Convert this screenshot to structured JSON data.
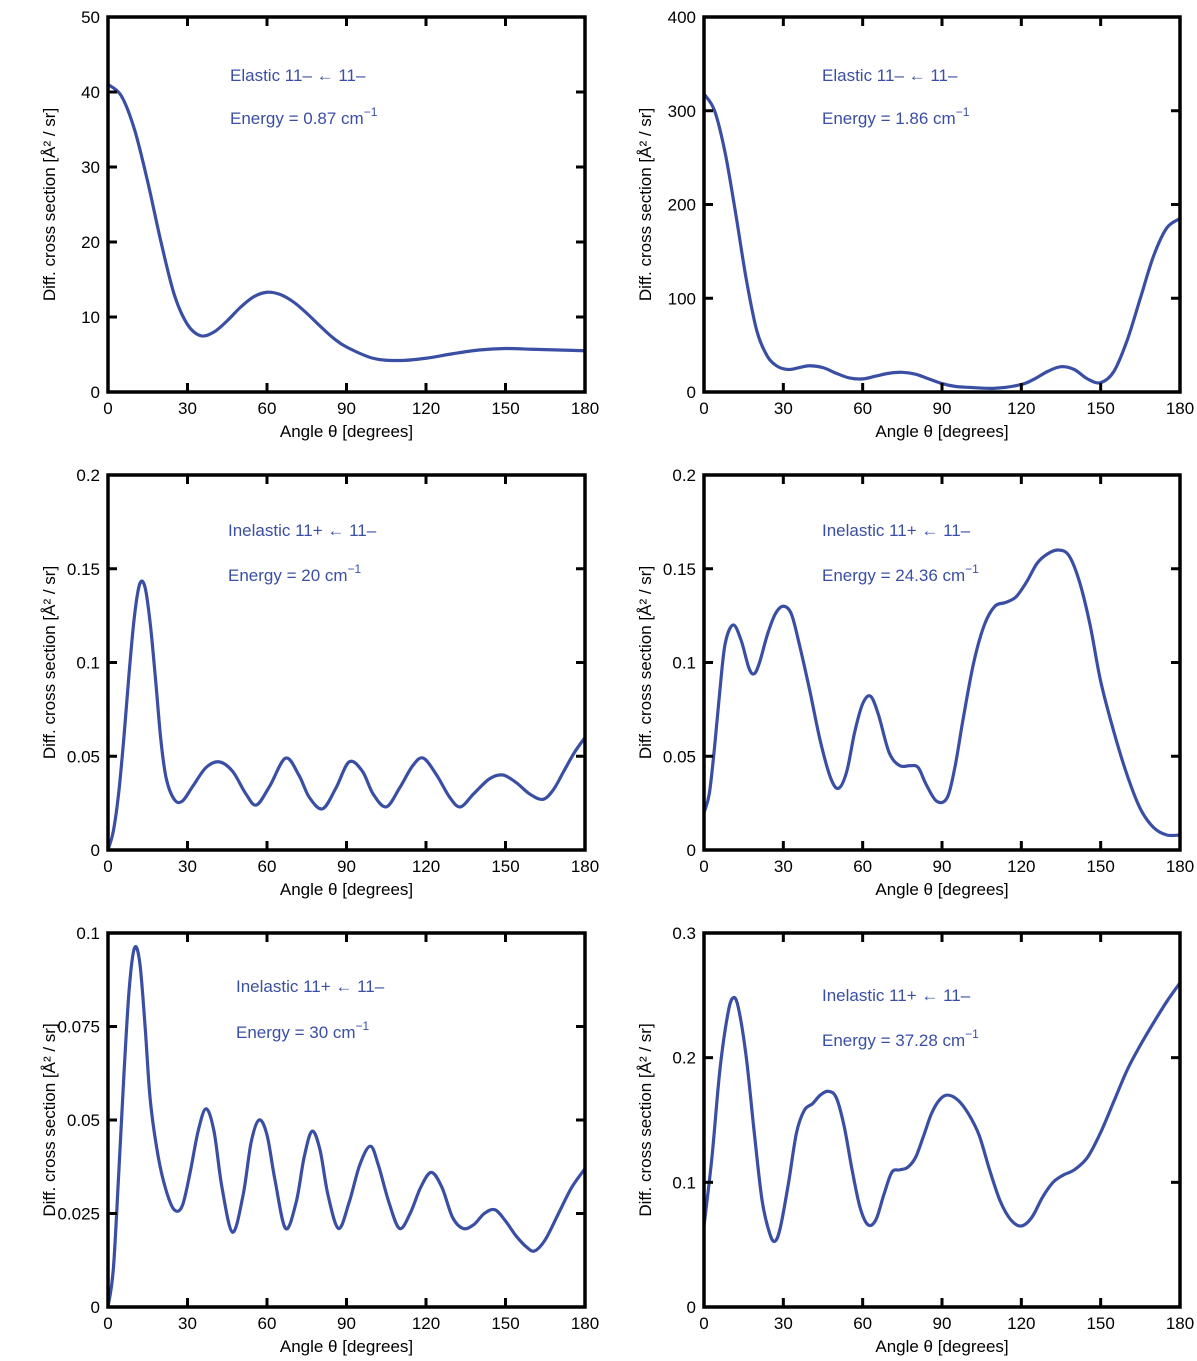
{
  "colors": {
    "line": "#3a4fa3",
    "axes": "#000000",
    "annotation": "#3a4fa3",
    "background": "#ffffff"
  },
  "chart_data": [
    {
      "type": "line",
      "xlabel": "Angle θ [degrees]",
      "ylabel": "Diff. cross section [Å² / sr]",
      "xlim": [
        0,
        180
      ],
      "ylim": [
        0,
        50
      ],
      "xticks": [
        "0",
        "30",
        "60",
        "90",
        "120",
        "150",
        "180"
      ],
      "yticks": [
        "0",
        "10",
        "20",
        "30",
        "40",
        "50"
      ],
      "annotation": {
        "line1": "Elastic 11– ← 11–",
        "line2_prefix": "Energy = 0.87 cm",
        "line2_sup": "−1"
      },
      "series": [
        {
          "x": [
            0,
            5,
            10,
            15,
            20,
            25,
            30,
            35,
            40,
            45,
            50,
            55,
            60,
            65,
            70,
            75,
            80,
            85,
            90,
            100,
            110,
            120,
            130,
            140,
            150,
            160,
            170,
            180
          ],
          "y": [
            41,
            39.5,
            35,
            28,
            20,
            13,
            9,
            7.5,
            8,
            9.5,
            11.3,
            12.7,
            13.3,
            13,
            12,
            10.5,
            8.8,
            7.2,
            6,
            4.5,
            4.2,
            4.5,
            5.1,
            5.6,
            5.8,
            5.7,
            5.6,
            5.5
          ]
        }
      ]
    },
    {
      "type": "line",
      "xlabel": "Angle θ [degrees]",
      "ylabel": "Diff. cross section [Å² / sr]",
      "xlim": [
        0,
        180
      ],
      "ylim": [
        0,
        400
      ],
      "xticks": [
        "0",
        "30",
        "60",
        "90",
        "120",
        "150",
        "180"
      ],
      "yticks": [
        "0",
        "100",
        "200",
        "300",
        "400"
      ],
      "annotation": {
        "line1": "Elastic 11– ← 11–",
        "line2_prefix": "Energy = 1.86 cm",
        "line2_sup": "−1"
      },
      "series": [
        {
          "x": [
            0,
            4,
            8,
            12,
            16,
            20,
            24,
            28,
            32,
            36,
            40,
            45,
            50,
            55,
            60,
            65,
            70,
            75,
            80,
            85,
            90,
            95,
            100,
            110,
            120,
            125,
            130,
            135,
            140,
            145,
            150,
            155,
            160,
            165,
            170,
            175,
            180
          ],
          "y": [
            318,
            300,
            255,
            190,
            120,
            65,
            38,
            27,
            24,
            26,
            28,
            26,
            20,
            15,
            14,
            17,
            20,
            21,
            19,
            14,
            9,
            6,
            5,
            4,
            8,
            14,
            22,
            27,
            24,
            14,
            10,
            22,
            55,
            100,
            145,
            175,
            185
          ]
        }
      ]
    },
    {
      "type": "line",
      "xlabel": "Angle θ [degrees]",
      "ylabel": "Diff. cross section [Å² / sr]",
      "xlim": [
        0,
        180
      ],
      "ylim": [
        0,
        0.2
      ],
      "xticks": [
        "0",
        "30",
        "60",
        "90",
        "120",
        "150",
        "180"
      ],
      "yticks": [
        "0",
        "0.05",
        "0.1",
        "0.15",
        "0.2"
      ],
      "annotation": {
        "line1": "Inelastic 11+ ← 11–",
        "line2_prefix": "Energy = 20 cm",
        "line2_sup": "−1"
      },
      "series": [
        {
          "x": [
            0,
            2,
            4,
            6,
            8,
            10,
            12,
            14,
            16,
            18,
            20,
            22,
            25,
            28,
            32,
            37,
            42,
            47,
            52,
            56,
            61,
            67,
            72,
            76,
            81,
            86,
            91,
            96,
            100,
            105,
            110,
            115,
            119,
            124,
            129,
            133,
            138,
            144,
            149,
            154,
            159,
            164,
            168,
            172,
            176,
            180
          ],
          "y": [
            0,
            0.01,
            0.03,
            0.06,
            0.095,
            0.125,
            0.142,
            0.14,
            0.12,
            0.09,
            0.058,
            0.038,
            0.027,
            0.026,
            0.034,
            0.044,
            0.047,
            0.042,
            0.03,
            0.024,
            0.034,
            0.049,
            0.04,
            0.028,
            0.022,
            0.033,
            0.047,
            0.042,
            0.03,
            0.023,
            0.033,
            0.045,
            0.049,
            0.04,
            0.028,
            0.023,
            0.03,
            0.038,
            0.04,
            0.036,
            0.03,
            0.027,
            0.032,
            0.042,
            0.052,
            0.06
          ]
        }
      ]
    },
    {
      "type": "line",
      "xlabel": "Angle θ [degrees]",
      "ylabel": "Diff. cross section [Å² / sr]",
      "xlim": [
        0,
        180
      ],
      "ylim": [
        0,
        0.2
      ],
      "xticks": [
        "0",
        "30",
        "60",
        "90",
        "120",
        "150",
        "180"
      ],
      "yticks": [
        "0",
        "0.05",
        "0.1",
        "0.15",
        "0.2"
      ],
      "annotation": {
        "line1": "Inelastic 11+ ← 11–",
        "line2_prefix": "Energy = 24.36 cm",
        "line2_sup": "−1"
      },
      "series": [
        {
          "x": [
            0,
            2,
            4,
            6,
            8,
            11,
            14,
            17,
            19,
            21,
            24,
            27,
            30,
            33,
            36,
            40,
            44,
            48,
            51,
            54,
            57,
            60,
            63,
            66,
            70,
            74,
            78,
            81,
            84,
            88,
            92,
            95,
            98,
            102,
            106,
            110,
            114,
            118,
            122,
            126,
            130,
            134,
            138,
            142,
            146,
            150,
            155,
            160,
            165,
            170,
            175,
            180
          ],
          "y": [
            0.02,
            0.03,
            0.055,
            0.085,
            0.11,
            0.12,
            0.112,
            0.097,
            0.094,
            0.1,
            0.115,
            0.126,
            0.13,
            0.126,
            0.11,
            0.085,
            0.058,
            0.038,
            0.033,
            0.042,
            0.063,
            0.078,
            0.082,
            0.072,
            0.052,
            0.045,
            0.045,
            0.044,
            0.035,
            0.026,
            0.028,
            0.045,
            0.07,
            0.1,
            0.12,
            0.13,
            0.132,
            0.135,
            0.143,
            0.153,
            0.158,
            0.16,
            0.157,
            0.143,
            0.12,
            0.09,
            0.063,
            0.04,
            0.022,
            0.012,
            0.008,
            0.008
          ]
        }
      ]
    },
    {
      "type": "line",
      "xlabel": "Angle θ [degrees]",
      "ylabel": "Diff. cross section [Å² / sr]",
      "xlim": [
        0,
        180
      ],
      "ylim": [
        0,
        0.1
      ],
      "xticks": [
        "0",
        "30",
        "60",
        "90",
        "120",
        "150",
        "180"
      ],
      "yticks": [
        "0",
        "0.025",
        "0.05",
        "0.075",
        "0.1"
      ],
      "annotation": {
        "line1": "Inelastic 11+ ← 11–",
        "line2_prefix": "Energy = 30 cm",
        "line2_sup": "−1"
      },
      "series": [
        {
          "x": [
            0,
            2,
            4,
            6,
            8,
            10,
            12,
            14,
            16,
            19,
            22,
            25,
            28,
            31,
            34,
            37,
            40,
            43,
            47,
            51,
            54,
            57,
            60,
            63,
            67,
            71,
            74,
            77,
            80,
            83,
            87,
            91,
            95,
            99,
            102,
            106,
            110,
            114,
            118,
            122,
            126,
            130,
            134,
            138,
            142,
            146,
            150,
            154,
            158,
            161,
            165,
            170,
            175,
            180
          ],
          "y": [
            0,
            0.01,
            0.035,
            0.062,
            0.085,
            0.096,
            0.092,
            0.075,
            0.055,
            0.04,
            0.031,
            0.026,
            0.027,
            0.036,
            0.047,
            0.053,
            0.047,
            0.032,
            0.02,
            0.03,
            0.044,
            0.05,
            0.046,
            0.034,
            0.021,
            0.028,
            0.04,
            0.047,
            0.042,
            0.03,
            0.021,
            0.028,
            0.038,
            0.043,
            0.038,
            0.028,
            0.021,
            0.025,
            0.032,
            0.036,
            0.032,
            0.024,
            0.021,
            0.022,
            0.025,
            0.026,
            0.023,
            0.019,
            0.016,
            0.015,
            0.018,
            0.025,
            0.032,
            0.037
          ]
        }
      ]
    },
    {
      "type": "line",
      "xlabel": "Angle θ [degrees]",
      "ylabel": "Diff. cross section [Å² / sr]",
      "xlim": [
        0,
        180
      ],
      "ylim": [
        0,
        0.3
      ],
      "xticks": [
        "0",
        "30",
        "60",
        "90",
        "120",
        "150",
        "180"
      ],
      "yticks": [
        "0",
        "0.1",
        "0.2",
        "0.3"
      ],
      "annotation": {
        "line1": "Inelastic 11+ ← 11–",
        "line2_prefix": "Energy = 37.28 cm",
        "line2_sup": "−1"
      },
      "series": [
        {
          "x": [
            0,
            3,
            6,
            9,
            11,
            13,
            16,
            19,
            22,
            25,
            27,
            29,
            32,
            35,
            38,
            41,
            44,
            47,
            50,
            53,
            56,
            59,
            62,
            65,
            68,
            71,
            74,
            77,
            80,
            83,
            86,
            89,
            92,
            96,
            100,
            104,
            108,
            112,
            116,
            120,
            124,
            128,
            132,
            136,
            140,
            145,
            150,
            155,
            160,
            165,
            170,
            175,
            180
          ],
          "y": [
            0.065,
            0.12,
            0.19,
            0.235,
            0.248,
            0.24,
            0.2,
            0.14,
            0.085,
            0.058,
            0.053,
            0.065,
            0.1,
            0.14,
            0.158,
            0.163,
            0.17,
            0.173,
            0.168,
            0.145,
            0.11,
            0.08,
            0.066,
            0.07,
            0.09,
            0.108,
            0.11,
            0.112,
            0.12,
            0.137,
            0.155,
            0.166,
            0.17,
            0.166,
            0.155,
            0.138,
            0.11,
            0.085,
            0.07,
            0.065,
            0.072,
            0.088,
            0.1,
            0.106,
            0.11,
            0.12,
            0.14,
            0.165,
            0.19,
            0.21,
            0.228,
            0.245,
            0.26
          ]
        }
      ]
    }
  ]
}
